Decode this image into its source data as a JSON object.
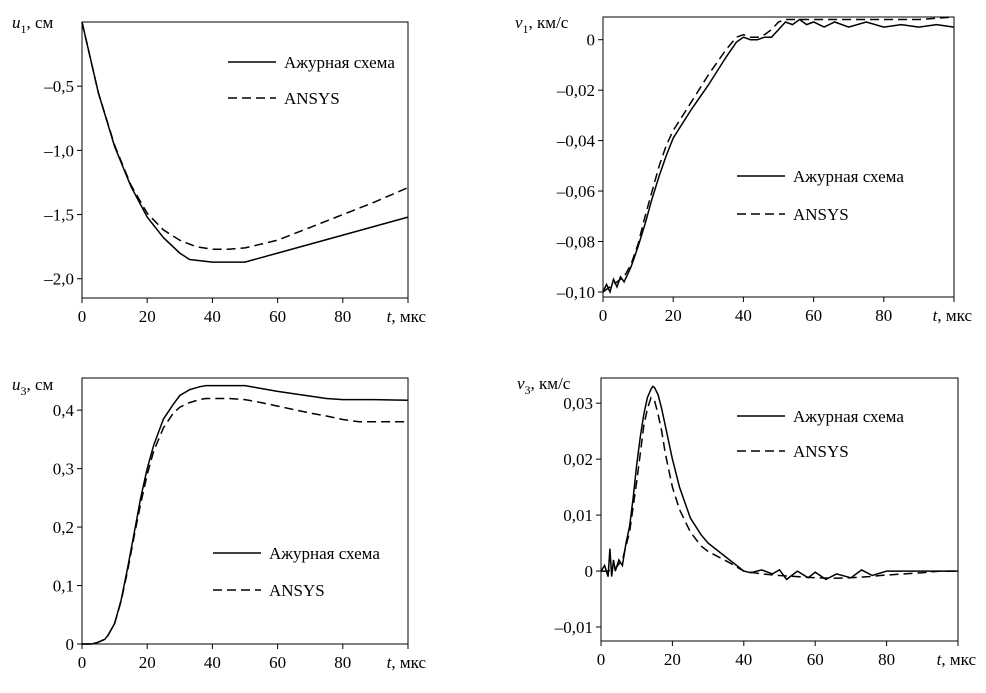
{
  "chart_data": [
    {
      "type": "line",
      "ylabel": "u₁, см",
      "ylabel_var": "u",
      "ylabel_sub": "1",
      "ylabel_unit": ", см",
      "xlabel": "t, мкс",
      "xlim": [
        0,
        100
      ],
      "ylim": [
        -2.15,
        0
      ],
      "xticks": [
        0,
        20,
        40,
        60,
        80
      ],
      "xtick_labels": [
        "0",
        "20",
        "40",
        "60",
        "80"
      ],
      "yticks": [
        -0.5,
        -1.0,
        -1.5,
        -2.0
      ],
      "ytick_labels": [
        "–0,5",
        "–1,0",
        "–1,5",
        "–2,0"
      ],
      "legend_position": "top-right",
      "series": [
        {
          "name": "Ажурная схема",
          "style": "solid",
          "x": [
            0,
            5,
            10,
            15,
            20,
            25,
            30,
            33,
            40,
            50,
            60,
            70,
            80,
            90,
            100
          ],
          "y": [
            0,
            -0.55,
            -0.97,
            -1.28,
            -1.52,
            -1.68,
            -1.8,
            -1.85,
            -1.87,
            -1.87,
            -1.8,
            -1.73,
            -1.66,
            -1.59,
            -1.52
          ]
        },
        {
          "name": "ANSYS",
          "style": "dashed",
          "x": [
            0,
            5,
            10,
            15,
            20,
            25,
            30,
            35,
            40,
            45,
            50,
            60,
            70,
            80,
            90,
            100
          ],
          "y": [
            0,
            -0.55,
            -0.96,
            -1.27,
            -1.49,
            -1.62,
            -1.7,
            -1.75,
            -1.77,
            -1.77,
            -1.76,
            -1.7,
            -1.6,
            -1.5,
            -1.4,
            -1.29
          ]
        }
      ]
    },
    {
      "type": "line",
      "ylabel": "v₁, км/с",
      "ylabel_var": "v",
      "ylabel_sub": "1",
      "ylabel_unit": ", км/с",
      "xlabel": "t, мкс",
      "xlim": [
        0,
        100
      ],
      "ylim": [
        -0.102,
        0.009
      ],
      "xticks": [
        0,
        20,
        40,
        60,
        80
      ],
      "xtick_labels": [
        "0",
        "20",
        "40",
        "60",
        "80"
      ],
      "yticks": [
        0,
        -0.02,
        -0.04,
        -0.06,
        -0.08,
        -0.1
      ],
      "ytick_labels": [
        "0",
        "–0,02",
        "–0,04",
        "–0,06",
        "–0,08",
        "–0,10"
      ],
      "legend_position": "center-right",
      "series": [
        {
          "name": "Ажурная схема",
          "style": "solid",
          "x": [
            0,
            1,
            2,
            3,
            4,
            5,
            6,
            7,
            8,
            9,
            10,
            12,
            14,
            16,
            18,
            20,
            25,
            30,
            35,
            38,
            40,
            42,
            44,
            46,
            48,
            50,
            52,
            54,
            56,
            58,
            60,
            63,
            66,
            70,
            75,
            80,
            85,
            90,
            95,
            100
          ],
          "y": [
            -0.1,
            -0.097,
            -0.1,
            -0.095,
            -0.098,
            -0.094,
            -0.096,
            -0.093,
            -0.09,
            -0.086,
            -0.082,
            -0.073,
            -0.063,
            -0.054,
            -0.046,
            -0.039,
            -0.028,
            -0.018,
            -0.007,
            -0.001,
            0.001,
            0.0,
            0.0,
            0.001,
            0.001,
            0.004,
            0.007,
            0.006,
            0.008,
            0.006,
            0.007,
            0.005,
            0.007,
            0.005,
            0.007,
            0.005,
            0.006,
            0.005,
            0.006,
            0.005
          ]
        },
        {
          "name": "ANSYS",
          "style": "dashed",
          "x": [
            0,
            2,
            4,
            6,
            8,
            10,
            12,
            14,
            16,
            18,
            20,
            25,
            30,
            35,
            38,
            40,
            42,
            44,
            46,
            48,
            50,
            52,
            55,
            60,
            70,
            80,
            90,
            100
          ],
          "y": [
            -0.1,
            -0.098,
            -0.096,
            -0.094,
            -0.089,
            -0.081,
            -0.07,
            -0.06,
            -0.05,
            -0.042,
            -0.036,
            -0.025,
            -0.014,
            -0.004,
            0.001,
            0.002,
            0.001,
            0.001,
            0.002,
            0.004,
            0.007,
            0.008,
            0.008,
            0.008,
            0.008,
            0.008,
            0.008,
            0.009
          ]
        }
      ]
    },
    {
      "type": "line",
      "ylabel": "u₃, см",
      "ylabel_var": "u",
      "ylabel_sub": "3",
      "ylabel_unit": ", см",
      "xlabel": "t, мкс",
      "xlim": [
        0,
        100
      ],
      "ylim": [
        0,
        0.455
      ],
      "xticks": [
        0,
        20,
        40,
        60,
        80
      ],
      "xtick_labels": [
        "0",
        "20",
        "40",
        "60",
        "80"
      ],
      "yticks": [
        0,
        0.1,
        0.2,
        0.3,
        0.4
      ],
      "ytick_labels": [
        "0",
        "0,1",
        "0,2",
        "0,3",
        "0,4"
      ],
      "legend_position": "bottom-right",
      "series": [
        {
          "name": "Ажурная схема",
          "style": "solid",
          "x": [
            0,
            3,
            5,
            7,
            8,
            10,
            12,
            14,
            16,
            18,
            20,
            22,
            25,
            28,
            30,
            33,
            36,
            38,
            40,
            45,
            50,
            55,
            60,
            65,
            70,
            75,
            80,
            90,
            100
          ],
          "y": [
            0,
            0,
            0.003,
            0.008,
            0.015,
            0.035,
            0.075,
            0.13,
            0.19,
            0.25,
            0.3,
            0.34,
            0.385,
            0.41,
            0.425,
            0.435,
            0.44,
            0.442,
            0.442,
            0.442,
            0.442,
            0.437,
            0.432,
            0.428,
            0.424,
            0.42,
            0.418,
            0.418,
            0.417
          ]
        },
        {
          "name": "ANSYS",
          "style": "dashed",
          "x": [
            0,
            3,
            5,
            7,
            8,
            10,
            12,
            14,
            16,
            18,
            20,
            22,
            25,
            28,
            30,
            33,
            36,
            38,
            40,
            45,
            50,
            55,
            60,
            65,
            70,
            75,
            80,
            85,
            90,
            100
          ],
          "y": [
            0,
            0,
            0.003,
            0.008,
            0.015,
            0.035,
            0.073,
            0.125,
            0.185,
            0.24,
            0.29,
            0.33,
            0.37,
            0.395,
            0.405,
            0.413,
            0.418,
            0.42,
            0.42,
            0.42,
            0.418,
            0.413,
            0.407,
            0.401,
            0.395,
            0.39,
            0.384,
            0.38,
            0.38,
            0.38
          ]
        }
      ]
    },
    {
      "type": "line",
      "ylabel": "v₃, км/с",
      "ylabel_var": "v",
      "ylabel_sub": "3",
      "ylabel_unit": ", км/с",
      "xlabel": "t, мкс",
      "xlim": [
        0,
        100
      ],
      "ylim": [
        -0.0125,
        0.0345
      ],
      "xticks": [
        0,
        20,
        40,
        60,
        80
      ],
      "xtick_labels": [
        "0",
        "20",
        "40",
        "60",
        "80"
      ],
      "yticks": [
        0.03,
        0.02,
        0.01,
        0,
        -0.01
      ],
      "ytick_labels": [
        "0,03",
        "0,02",
        "0,01",
        "0",
        "–0,01"
      ],
      "legend_position": "top-right",
      "series": [
        {
          "name": "Ажурная схема",
          "style": "solid",
          "x": [
            0,
            1,
            2,
            2.5,
            3,
            3.5,
            4,
            5,
            6,
            7,
            8,
            9,
            10,
            11,
            12,
            13,
            14,
            14.5,
            15,
            16,
            17,
            18,
            20,
            22,
            25,
            28,
            30,
            33,
            36,
            40,
            42,
            45,
            48,
            50,
            52,
            55,
            58,
            60,
            63,
            66,
            70,
            73,
            76,
            80,
            85,
            90,
            95,
            100
          ],
          "y": [
            0,
            0.001,
            -0.001,
            0.004,
            -0.001,
            0.002,
            0.0,
            0.002,
            0.001,
            0.005,
            0.008,
            0.013,
            0.019,
            0.024,
            0.028,
            0.031,
            0.0325,
            0.033,
            0.0328,
            0.0315,
            0.029,
            0.026,
            0.02,
            0.015,
            0.0095,
            0.0065,
            0.005,
            0.0035,
            0.002,
            0.0,
            -0.0003,
            0.0002,
            -0.0005,
            0.0002,
            -0.0015,
            0.0,
            -0.0012,
            -0.0002,
            -0.0015,
            -0.0005,
            -0.0012,
            0.0002,
            -0.0008,
            0.0,
            0.0,
            0.0,
            0.0,
            0.0
          ]
        },
        {
          "name": "ANSYS",
          "style": "dashed",
          "x": [
            0,
            2,
            4,
            6,
            8,
            10,
            11,
            12,
            13,
            14,
            15,
            16,
            17,
            18,
            20,
            22,
            25,
            28,
            30,
            33,
            36,
            40,
            45,
            50,
            55,
            60,
            65,
            70,
            75,
            80,
            85,
            90,
            95,
            100
          ],
          "y": [
            0,
            0.0,
            0.0005,
            0.002,
            0.007,
            0.016,
            0.021,
            0.026,
            0.029,
            0.031,
            0.0305,
            0.028,
            0.025,
            0.021,
            0.015,
            0.011,
            0.007,
            0.0045,
            0.0035,
            0.0025,
            0.0015,
            0.0,
            -0.0005,
            -0.0008,
            -0.001,
            -0.0012,
            -0.0013,
            -0.0012,
            -0.001,
            -0.0007,
            -0.0005,
            -0.0003,
            0.0,
            0.0
          ]
        }
      ]
    }
  ]
}
